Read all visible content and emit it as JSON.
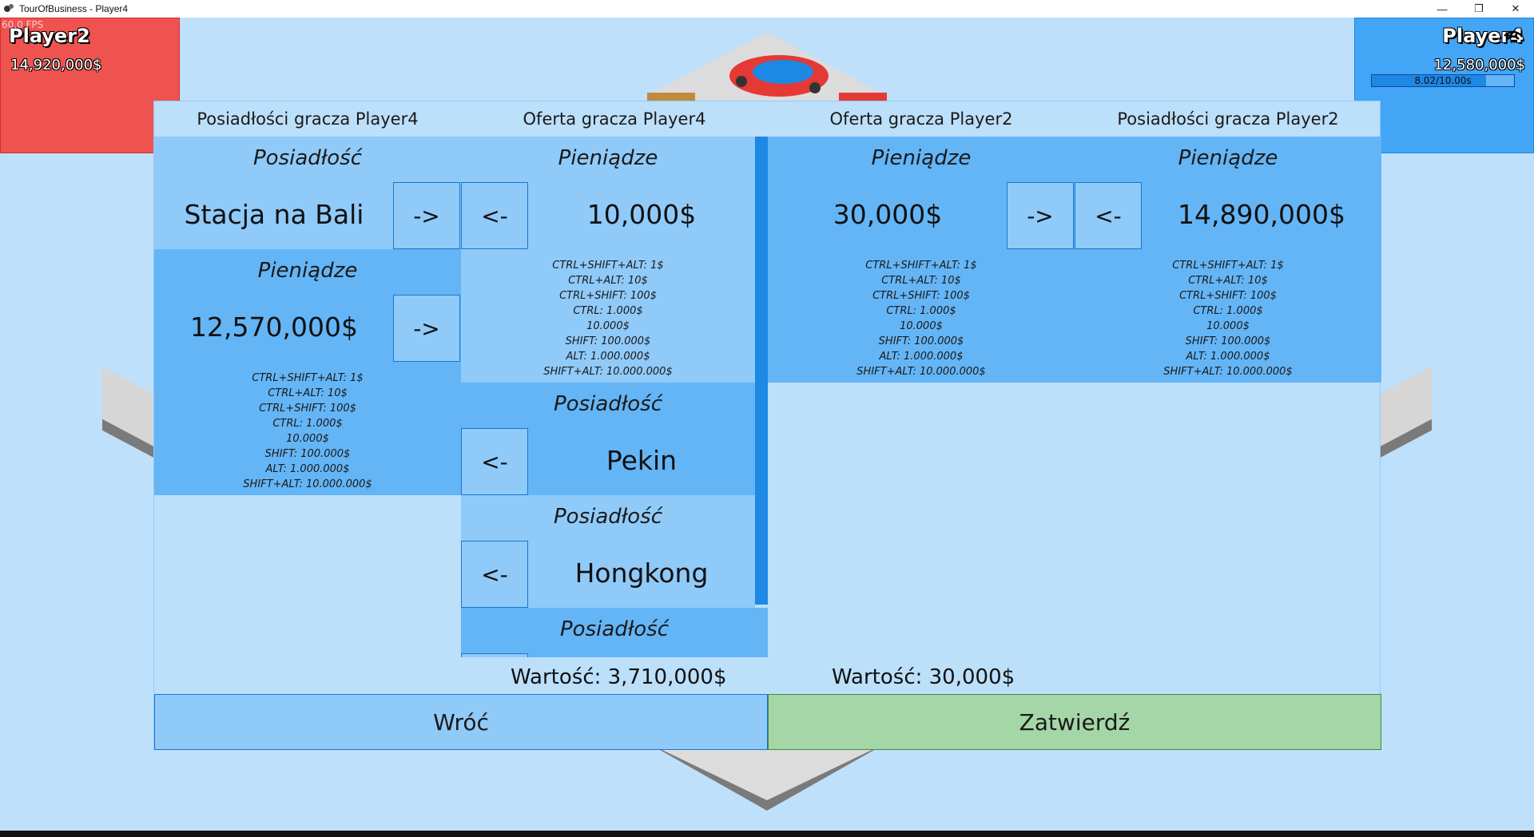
{
  "window": {
    "title": "TourOfBusiness - Player4",
    "minimize_icon": "minimize-icon",
    "restore_icon": "restore-icon",
    "close_icon": "close-icon"
  },
  "hud": {
    "fps": "60.0 FPS",
    "player2": {
      "name": "Player2",
      "money": "14,920,000$",
      "color": "#ef5350"
    },
    "player4": {
      "name": "Player4",
      "money": "12,580,000$",
      "color": "#42a5f5",
      "timer": "8.02/10.00s",
      "timer_fraction": 0.802
    }
  },
  "trade": {
    "headers": [
      "Posiadłości gracza Player4",
      "Oferta gracza Player4",
      "Oferta gracza Player2",
      "Posiadłości gracza Player2"
    ],
    "property_title": "Posiadłość",
    "money_title": "Pieniądze",
    "right_arrow": "->",
    "left_arrow": "<-",
    "hint_lines": [
      "CTRL+SHIFT+ALT: 1$",
      "CTRL+ALT: 10$",
      "CTRL+SHIFT: 100$",
      "CTRL: 1.000$",
      "10.000$",
      "SHIFT: 100.000$",
      "ALT: 1.000.000$",
      "SHIFT+ALT: 10.000.000$"
    ],
    "p4_holdings": {
      "property_name": "Stacja na Bali",
      "money": "12,570,000$"
    },
    "p4_offer": {
      "money": "10,000$",
      "properties": [
        "Pekin",
        "Hongkong"
      ]
    },
    "p2_offer": {
      "money": "30,000$"
    },
    "p2_holdings": {
      "money": "14,890,000$"
    },
    "value_p4": "Wartość: 3,710,000$",
    "value_p2": "Wartość: 30,000$",
    "back_label": "Wróć",
    "confirm_label": "Zatwierdź"
  }
}
